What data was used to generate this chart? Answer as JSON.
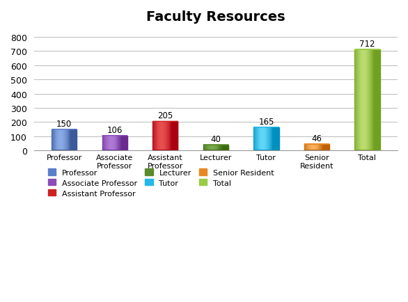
{
  "title": "Faculty Resources",
  "categories": [
    "Professor",
    "Associate\nProfessor",
    "Assistant\nProfessor",
    "Lecturer",
    "Tutor",
    "Senior\nResident",
    "Total"
  ],
  "values": [
    150,
    106,
    205,
    40,
    165,
    46,
    712
  ],
  "bar_colors_main": [
    "#5b7ec9",
    "#8b4db8",
    "#cc2222",
    "#5a8a2a",
    "#22b8e8",
    "#e88822",
    "#99cc44"
  ],
  "bar_colors_dark": [
    "#3a5a9a",
    "#6a2a90",
    "#aa0010",
    "#3a6a10",
    "#0090c0",
    "#c06000",
    "#70a020"
  ],
  "bar_colors_light": [
    "#8aaae8",
    "#b07ad8",
    "#e85050",
    "#7aaa50",
    "#60d8f8",
    "#f8b060",
    "#bbdd70"
  ],
  "ylim": [
    0,
    850
  ],
  "yticks": [
    0,
    100,
    200,
    300,
    400,
    500,
    600,
    700,
    800
  ],
  "legend_labels": [
    "Professor",
    "Associate Professor",
    "Assistant Professor",
    "Lecturer",
    "Tutor",
    "Senior Resident",
    "Total"
  ],
  "legend_colors": [
    "#5b7ec9",
    "#8b4db8",
    "#cc2222",
    "#5a8a2a",
    "#22b8e8",
    "#e88822",
    "#99cc44"
  ],
  "title_fontsize": 14,
  "label_fontsize": 9,
  "background_color": "#ffffff",
  "grid_color": "#bbbbbb"
}
